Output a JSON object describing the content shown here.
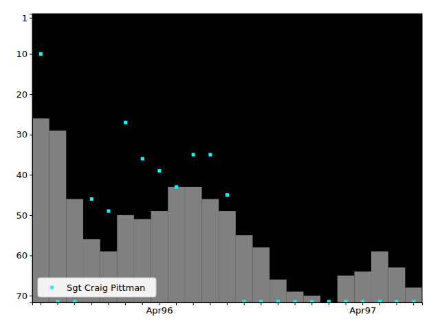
{
  "chart_data": {
    "type": "combo",
    "categories": [
      null,
      null,
      null,
      null,
      null,
      null,
      null,
      "Apr96",
      null,
      null,
      null,
      null,
      null,
      null,
      null,
      null,
      null,
      null,
      null,
      "Apr97",
      null,
      null,
      null
    ],
    "series": [
      {
        "type": "bar",
        "color": "#808080",
        "values": [
          26,
          29,
          46,
          56,
          59,
          50,
          51,
          49,
          43,
          43,
          46,
          49,
          55,
          58,
          66,
          69,
          70,
          null,
          65,
          64,
          59,
          63,
          68
        ]
      },
      {
        "type": "scatter",
        "name": "Sgt Craig Pittman",
        "color": "#00ffff",
        "marker": "square",
        "values": [
          10,
          71.5,
          71.5,
          46,
          49,
          27,
          36,
          39,
          43,
          35,
          35,
          45,
          71.5,
          71.5,
          71.5,
          71.5,
          71.5,
          71.5,
          71.5,
          71.5,
          71.5,
          71.5,
          71.5
        ]
      }
    ],
    "ylim": [
      0,
      71.7
    ],
    "yticks": [
      1,
      10,
      20,
      30,
      40,
      50,
      60,
      70
    ],
    "legend": "lower left"
  }
}
